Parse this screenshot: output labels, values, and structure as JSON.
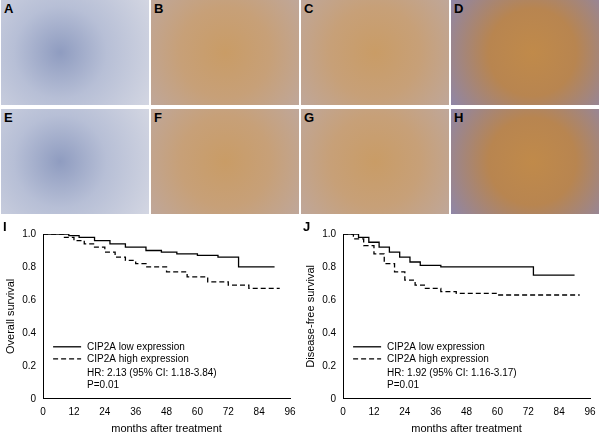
{
  "image_panels": {
    "labels": [
      "A",
      "B",
      "C",
      "D",
      "E",
      "F",
      "G",
      "H"
    ]
  },
  "chart_data": [
    {
      "type": "step",
      "panel_label": "I",
      "x_label": "months after treatment",
      "y_label": "Overall survival",
      "xlim": [
        0,
        96
      ],
      "xticks": [
        0,
        12,
        24,
        36,
        48,
        60,
        72,
        84,
        96
      ],
      "ylim": [
        0,
        1
      ],
      "yticks": [
        0,
        0.2,
        0.4,
        0.6,
        0.8,
        {
          "value": 1,
          "label": "1.0"
        }
      ],
      "grid": false,
      "legend": "lower left",
      "annotations": [
        "HR: 2.13 (95% CI: 1.18-3.84)",
        "P=0.01"
      ],
      "series": [
        {
          "name": "CIP2A low expression",
          "color": "#000000",
          "line_style": "solid",
          "x": [
            0,
            10,
            14,
            20,
            26,
            32,
            40,
            46,
            52,
            60,
            68,
            76,
            90
          ],
          "values": [
            1.0,
            0.99,
            0.98,
            0.96,
            0.94,
            0.92,
            0.9,
            0.89,
            0.88,
            0.87,
            0.86,
            0.8,
            0.8
          ]
        },
        {
          "name": "CIP2A high expression",
          "color": "#000000",
          "line_style": "dashed",
          "x": [
            0,
            8,
            12,
            16,
            20,
            24,
            28,
            32,
            36,
            40,
            48,
            56,
            64,
            72,
            80,
            92
          ],
          "values": [
            1.0,
            0.98,
            0.96,
            0.94,
            0.92,
            0.89,
            0.86,
            0.84,
            0.82,
            0.8,
            0.77,
            0.74,
            0.71,
            0.69,
            0.67,
            0.67
          ]
        }
      ]
    },
    {
      "type": "step",
      "panel_label": "J",
      "x_label": "months after treatment",
      "y_label": "Disease-free survival",
      "xlim": [
        0,
        96
      ],
      "xticks": [
        0,
        12,
        24,
        36,
        48,
        60,
        72,
        84,
        96
      ],
      "ylim": [
        0,
        1
      ],
      "yticks": [
        0,
        0.2,
        0.4,
        0.6,
        0.8,
        {
          "value": 1,
          "label": "1.0"
        }
      ],
      "grid": false,
      "legend": "lower left",
      "annotations": [
        "HR: 1.92 (95% CI: 1.16-3.17)",
        "P=0.01"
      ],
      "series": [
        {
          "name": "CIP2A low expression",
          "color": "#000000",
          "line_style": "solid",
          "x": [
            0,
            6,
            10,
            14,
            18,
            22,
            26,
            30,
            38,
            74,
            90
          ],
          "values": [
            1.0,
            0.98,
            0.95,
            0.92,
            0.89,
            0.86,
            0.83,
            0.81,
            0.8,
            0.75,
            0.75
          ]
        },
        {
          "name": "CIP2A high expression",
          "color": "#000000",
          "line_style": "dashed",
          "x": [
            0,
            4,
            8,
            12,
            16,
            20,
            24,
            28,
            32,
            38,
            44,
            60,
            92
          ],
          "values": [
            1.0,
            0.97,
            0.93,
            0.88,
            0.82,
            0.77,
            0.72,
            0.69,
            0.67,
            0.65,
            0.64,
            0.63,
            0.63
          ]
        }
      ]
    }
  ]
}
